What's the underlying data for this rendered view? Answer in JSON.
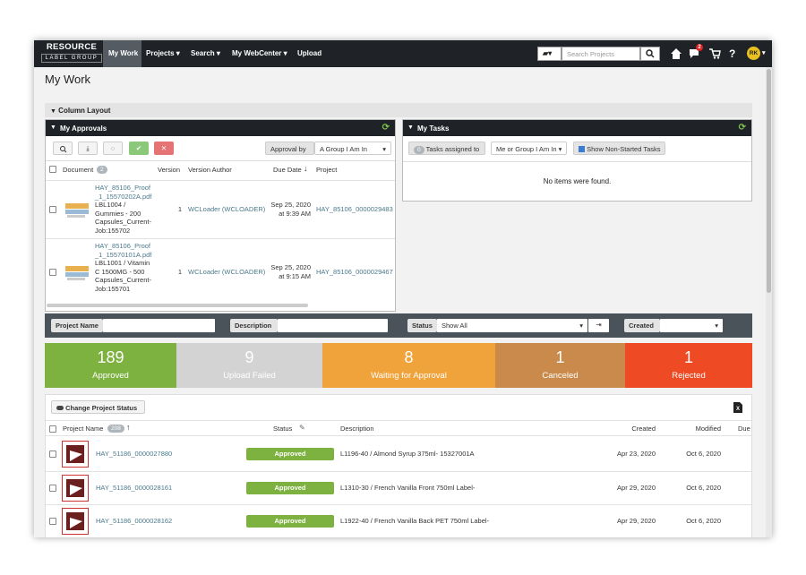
{
  "nav": {
    "logo_top": "RESOURCE",
    "logo_bottom": "LABEL GROUP",
    "menu": [
      "My Work",
      "Projects",
      "Search",
      "My WebCenter",
      "Upload"
    ],
    "search_placeholder": "Search Projects",
    "notification_count": "2",
    "avatar": "RK"
  },
  "page_title": "My Work",
  "column_layout": "Column Layout",
  "approvals": {
    "title": "My Approvals",
    "filter_label": "Approval by",
    "filter_value": "A Group I Am In",
    "columns": [
      "Document",
      "Version",
      "Version Author",
      "Due Date",
      "Project"
    ],
    "document_count": "2",
    "rows": [
      {
        "file": "HAY_85106_Proof_1_15570202A.pdf",
        "description": "LBL1004 / Gummies - 200 Capsules_Current-Job:155702",
        "version": "1",
        "author": "WCLoader (WCLOADER)",
        "due_date": "Sep 25, 2020",
        "due_time": "at 9:39 AM",
        "project": "HAY_85106_0000029483"
      },
      {
        "file": "HAY_85106_Proof_1_15570101A.pdf",
        "description": "LBL1001 / Vitamin C 1500MG - 500 Capsules_Current-Job:155701",
        "version": "1",
        "author": "WCLoader (WCLOADER)",
        "due_date": "Sep 25, 2020",
        "due_time": "at 9:15 AM",
        "project": "HAY_85106_0000029467"
      }
    ]
  },
  "tasks": {
    "title": "My Tasks",
    "filter_count": "0",
    "filter_label": "Tasks assigned to",
    "filter_value": "Me or Group I Am In",
    "checkbox_label": "Show Non-Started Tasks",
    "empty": "No items were found."
  },
  "filters": {
    "labels": [
      "Project Name",
      "Description",
      "Status",
      "Created"
    ],
    "status_value": "Show All"
  },
  "stats": [
    {
      "count": "189",
      "label": "Approved"
    },
    {
      "count": "9",
      "label": "Upload Failed"
    },
    {
      "count": "8",
      "label": "Waiting for Approval"
    },
    {
      "count": "1",
      "label": "Canceled"
    },
    {
      "count": "1",
      "label": "Rejected"
    }
  ],
  "projects": {
    "action": "Change Project Status",
    "columns": [
      "Project Name",
      "Status",
      "Description",
      "Created",
      "Modified",
      "Due"
    ],
    "count": "208",
    "rows": [
      {
        "name": "HAY_51186_0000027880",
        "status": "Approved",
        "description": "L1196-40 / Almond Syrup 375ml- 15327001A",
        "created": "Apr 23, 2020",
        "modified": "Oct 6, 2020"
      },
      {
        "name": "HAY_51186_0000028161",
        "status": "Approved",
        "description": "L1310-30 / French Vanilla Front 750ml Label-",
        "created": "Apr 29, 2020",
        "modified": "Oct 6, 2020"
      },
      {
        "name": "HAY_51186_0000028162",
        "status": "Approved",
        "description": "L1922-40 / French Vanilla Back PET 750ml Label-",
        "created": "Apr 29, 2020",
        "modified": "Oct 6, 2020"
      }
    ]
  }
}
